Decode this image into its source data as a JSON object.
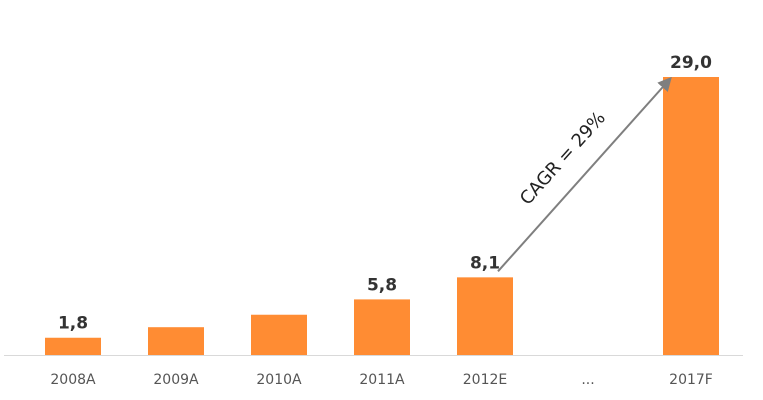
{
  "chart_data": {
    "type": "bar",
    "categories": [
      "2008A",
      "2009A",
      "2010A",
      "2011A",
      "2012E",
      "...",
      "2017F"
    ],
    "values": [
      1.8,
      2.9,
      4.2,
      5.8,
      8.1,
      null,
      29.0
    ],
    "data_labels": [
      "1,8",
      "",
      "",
      "5,8",
      "8,1",
      "",
      "29,0"
    ],
    "ylim": [
      0,
      30
    ],
    "grid": false,
    "annotation": {
      "text": "CAGR = 29%",
      "from_category": "2012E",
      "to_category": "2017F"
    }
  },
  "colors": {
    "bar": "#FF8C33",
    "axis": "#d9d9d9",
    "arrow": "#7f7f7f"
  }
}
